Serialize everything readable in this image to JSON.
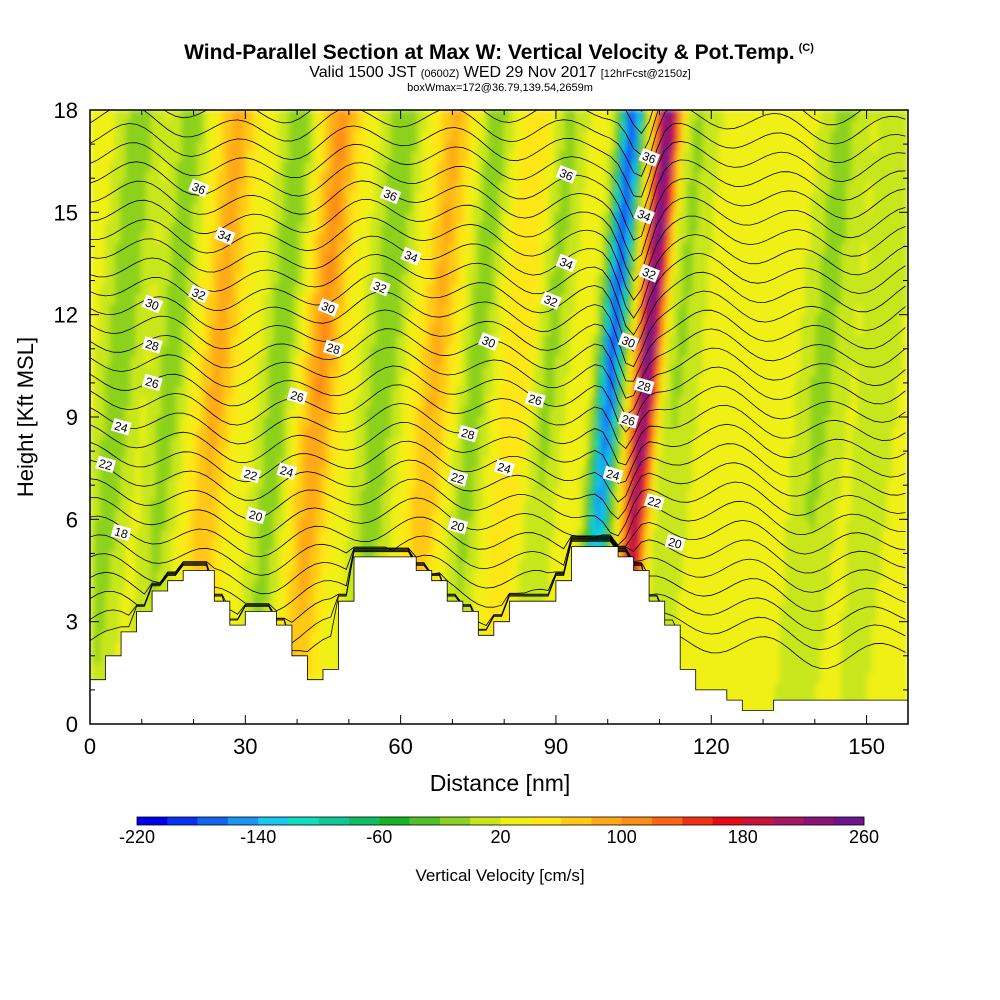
{
  "header": {
    "title": "Wind-Parallel Section at Max W: Vertical Velocity & Pot.Temp.",
    "title_tag": "(C)",
    "subtitle_prefix": "Valid 1500 JST",
    "subtitle_z": "(0600Z)",
    "subtitle_date": "WED 29 Nov 2017",
    "subtitle_fcst": "[12hrFcst@2150z]",
    "subtitle3": "boxWmax=172@36.79,139.54,2659m"
  },
  "chart_data": {
    "type": "heatmap",
    "xlabel": "Distance [nm]",
    "ylabel": "Height [Kft MSL]",
    "xlim": [
      0,
      158
    ],
    "ylim": [
      0,
      18
    ],
    "x_ticks": [
      0,
      30,
      60,
      90,
      120,
      150
    ],
    "y_ticks": [
      0,
      3,
      6,
      9,
      12,
      15,
      18
    ],
    "colorbar": {
      "label": "Vertical Velocity [cm/s]",
      "tick_values": [
        -220,
        -140,
        -60,
        20,
        100,
        180,
        260
      ],
      "range": [
        -220,
        260
      ],
      "colors": [
        "#0000f0",
        "#0a30f4",
        "#1464f4",
        "#1a96f4",
        "#16c8f0",
        "#10dcc0",
        "#10c896",
        "#10bc64",
        "#18b428",
        "#50c028",
        "#8cd21e",
        "#c8e61a",
        "#f0f014",
        "#ffe614",
        "#ffc814",
        "#ffaa14",
        "#ff8c14",
        "#ff6414",
        "#f03214",
        "#e60a14",
        "#c8143c",
        "#aa1464",
        "#8c1478",
        "#6e148c"
      ]
    },
    "terrain_profile": {
      "x": [
        0,
        3,
        3,
        6,
        6,
        9,
        9,
        12,
        12,
        15,
        15,
        18,
        18,
        21,
        21,
        24,
        24,
        27,
        27,
        30,
        30,
        33,
        33,
        36,
        36,
        39,
        39,
        42,
        42,
        45,
        45,
        48,
        48,
        51,
        51,
        54,
        54,
        57,
        57,
        60,
        60,
        63,
        63,
        66,
        66,
        69,
        69,
        72,
        72,
        75,
        75,
        78,
        78,
        81,
        81,
        84,
        84,
        87,
        87,
        90,
        90,
        93,
        93,
        96,
        96,
        99,
        99,
        102,
        102,
        105,
        105,
        108,
        108,
        111,
        111,
        114,
        114,
        117,
        117,
        120,
        120,
        123,
        123,
        126,
        126,
        129,
        129,
        132,
        132,
        135,
        135,
        138,
        138,
        141,
        141,
        144,
        144,
        147,
        147,
        150,
        150,
        153,
        153,
        158
      ],
      "y": [
        1.3,
        1.3,
        2.0,
        2.0,
        2.7,
        2.7,
        3.3,
        3.3,
        3.9,
        3.9,
        4.2,
        4.2,
        4.5,
        4.5,
        4.5,
        4.5,
        3.6,
        3.6,
        2.9,
        2.9,
        3.3,
        3.3,
        3.3,
        3.3,
        2.9,
        2.9,
        2.0,
        2.0,
        1.3,
        1.3,
        1.6,
        1.6,
        3.6,
        3.6,
        4.9,
        4.9,
        4.9,
        4.9,
        4.9,
        4.9,
        4.9,
        4.9,
        4.5,
        4.5,
        4.2,
        4.2,
        3.6,
        3.6,
        3.3,
        3.3,
        2.6,
        2.6,
        3.0,
        3.0,
        3.6,
        3.6,
        3.6,
        3.6,
        3.6,
        3.6,
        4.2,
        4.2,
        5.2,
        5.2,
        5.2,
        5.2,
        5.2,
        5.2,
        4.9,
        4.9,
        4.5,
        4.5,
        3.6,
        3.6,
        2.9,
        2.9,
        1.6,
        1.6,
        1.0,
        1.0,
        1.0,
        1.0,
        0.7,
        0.7,
        0.4,
        0.4,
        0.4,
        0.4,
        0.7,
        0.7,
        0.7,
        0.7,
        0.7,
        0.7,
        0.7,
        0.7,
        0.7,
        0.7,
        0.7,
        0.7,
        0.7,
        0.7,
        0.7,
        0.7
      ]
    },
    "contour_labels": [
      {
        "value": "36",
        "x": 21,
        "y": 15.7
      },
      {
        "value": "34",
        "x": 26,
        "y": 14.3
      },
      {
        "value": "32",
        "x": 21,
        "y": 12.6
      },
      {
        "value": "30",
        "x": 12,
        "y": 12.3
      },
      {
        "value": "28",
        "x": 12,
        "y": 11.1
      },
      {
        "value": "26",
        "x": 12,
        "y": 10.0
      },
      {
        "value": "24",
        "x": 6,
        "y": 8.7
      },
      {
        "value": "22",
        "x": 3,
        "y": 7.6
      },
      {
        "value": "18",
        "x": 6,
        "y": 5.6
      },
      {
        "value": "22",
        "x": 31,
        "y": 7.3
      },
      {
        "value": "20",
        "x": 32,
        "y": 6.1
      },
      {
        "value": "24",
        "x": 38,
        "y": 7.4
      },
      {
        "value": "26",
        "x": 40,
        "y": 9.6
      },
      {
        "value": "30",
        "x": 46,
        "y": 12.2
      },
      {
        "value": "28",
        "x": 47,
        "y": 11.0
      },
      {
        "value": "36",
        "x": 58,
        "y": 15.5
      },
      {
        "value": "34",
        "x": 62,
        "y": 13.7
      },
      {
        "value": "32",
        "x": 56,
        "y": 12.8
      },
      {
        "value": "30",
        "x": 77,
        "y": 11.2
      },
      {
        "value": "28",
        "x": 73,
        "y": 8.5
      },
      {
        "value": "24",
        "x": 80,
        "y": 7.5
      },
      {
        "value": "22",
        "x": 71,
        "y": 7.2
      },
      {
        "value": "20",
        "x": 71,
        "y": 5.8
      },
      {
        "value": "26",
        "x": 86,
        "y": 9.5
      },
      {
        "value": "32",
        "x": 89,
        "y": 12.4
      },
      {
        "value": "36",
        "x": 92,
        "y": 16.1
      },
      {
        "value": "34",
        "x": 92,
        "y": 13.5
      },
      {
        "value": "36",
        "x": 108,
        "y": 16.6
      },
      {
        "value": "34",
        "x": 107,
        "y": 14.9
      },
      {
        "value": "32",
        "x": 108,
        "y": 13.2
      },
      {
        "value": "30",
        "x": 104,
        "y": 11.2
      },
      {
        "value": "28",
        "x": 107,
        "y": 9.9
      },
      {
        "value": "26",
        "x": 104,
        "y": 8.9
      },
      {
        "value": "24",
        "x": 101,
        "y": 7.3
      },
      {
        "value": "22",
        "x": 109,
        "y": 6.5
      },
      {
        "value": "20",
        "x": 113,
        "y": 5.3
      }
    ]
  }
}
